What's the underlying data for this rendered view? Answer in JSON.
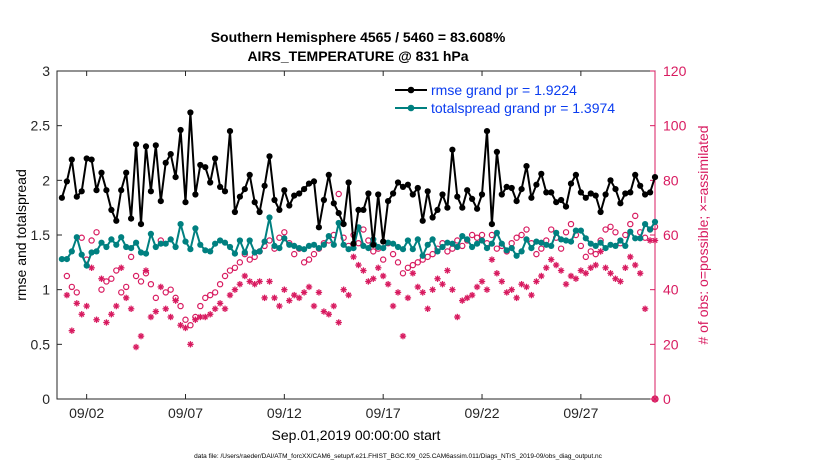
{
  "chart_data": {
    "type": "line",
    "title": "Southern Hemisphere 4565 / 5460 = 83.608%",
    "subtitle": "AIRS_TEMPERATURE @ 831 hPa",
    "xlabel": "Sep.01,2019 00:00:00 start",
    "ylabel_left": "rmse and totalspread",
    "ylabel_right": "# of obs: o=possible; ×=assimilated",
    "footnote": "data file: /Users/raeder/DAI/ATM_forcXX/CAM6_setup/f.e21.FHIST_BGC.f09_025.CAM6assim.011/Diags_NTrS_2019-09/obs_diag_output.nc",
    "xlim": [
      0.5,
      30.75
    ],
    "x_ticks": [
      2,
      7,
      12,
      17,
      22,
      27
    ],
    "x_tick_labels": [
      "09/02",
      "09/07",
      "09/12",
      "09/17",
      "09/22",
      "09/27"
    ],
    "ylim_left": [
      0,
      3
    ],
    "y_ticks_left": [
      "0",
      "0.5",
      "1",
      "1.5",
      "2",
      "2.5",
      "3"
    ],
    "ylim_right": [
      0,
      120
    ],
    "y_ticks_right": [
      "0",
      "20",
      "40",
      "60",
      "80",
      "100",
      "120"
    ],
    "colors": {
      "rmse": "#000000",
      "spread": "#008080",
      "obs": "#d81b60",
      "legend_text": "#0a3cf0"
    },
    "x_step": 0.25,
    "x_start": 0.75,
    "series": [
      {
        "name": "rmse grand pr = 1.9224",
        "axis": "left",
        "values": [
          1.84,
          1.99,
          2.19,
          1.85,
          1.9,
          2.2,
          2.19,
          1.91,
          2.07,
          1.91,
          1.73,
          1.63,
          1.91,
          2.07,
          1.65,
          2.33,
          1.6,
          2.31,
          1.9,
          2.32,
          1.81,
          2.16,
          2.24,
          2.03,
          2.46,
          1.8,
          2.62,
          1.87,
          2.14,
          2.12,
          1.98,
          2.2,
          1.94,
          1.9,
          2.45,
          1.71,
          1.85,
          1.92,
          2.05,
          1.8,
          1.71,
          1.95,
          2.22,
          1.82,
          1.73,
          1.91,
          1.77,
          1.86,
          1.88,
          1.92,
          1.97,
          1.99,
          1.57,
          1.82,
          2.05,
          1.79,
          1.7,
          1.6,
          1.98,
          1.42,
          1.73,
          1.73,
          1.88,
          1.41,
          1.87,
          1.44,
          1.81,
          1.88,
          1.98,
          1.94,
          1.96,
          1.87,
          1.93,
          1.63,
          1.9,
          1.66,
          1.73,
          1.87,
          1.75,
          2.28,
          1.85,
          1.75,
          1.91,
          1.83,
          1.74,
          1.87,
          2.45,
          1.6,
          2.26,
          1.87,
          1.94,
          1.93,
          1.81,
          1.92,
          2.13,
          1.84,
          1.96,
          2.06,
          1.89,
          1.89,
          1.8,
          1.82,
          1.76,
          1.97,
          2.05,
          1.89,
          1.84,
          1.88,
          1.86,
          1.71,
          1.87,
          2.0,
          1.92,
          1.79,
          1.88,
          1.89,
          2.05,
          1.95,
          1.87,
          1.89,
          2.03
        ]
      },
      {
        "name": "totalspread grand pr = 1.3974",
        "axis": "left",
        "values": [
          1.28,
          1.28,
          1.35,
          1.48,
          1.32,
          1.22,
          1.34,
          1.35,
          1.43,
          1.39,
          1.46,
          1.41,
          1.48,
          1.39,
          1.38,
          1.43,
          1.34,
          1.33,
          1.51,
          1.39,
          1.42,
          1.42,
          1.46,
          1.39,
          1.6,
          1.44,
          1.37,
          1.56,
          1.41,
          1.36,
          1.35,
          1.42,
          1.45,
          1.43,
          1.39,
          1.33,
          1.45,
          1.34,
          1.45,
          1.34,
          1.35,
          1.44,
          1.66,
          1.4,
          1.38,
          1.47,
          1.41,
          1.4,
          1.38,
          1.37,
          1.4,
          1.41,
          1.38,
          1.41,
          1.49,
          1.41,
          1.61,
          1.41,
          1.37,
          1.38,
          1.57,
          1.4,
          1.38,
          1.46,
          1.39,
          1.38,
          1.43,
          1.42,
          1.39,
          1.37,
          1.45,
          1.37,
          1.46,
          1.31,
          1.41,
          1.46,
          1.35,
          1.39,
          1.43,
          1.42,
          1.39,
          1.49,
          1.46,
          1.39,
          1.42,
          1.45,
          1.38,
          1.42,
          1.52,
          1.42,
          1.36,
          1.38,
          1.31,
          1.35,
          1.46,
          1.38,
          1.44,
          1.43,
          1.41,
          1.4,
          1.52,
          1.46,
          1.45,
          1.44,
          1.54,
          1.54,
          1.47,
          1.42,
          1.4,
          1.43,
          1.38,
          1.41,
          1.4,
          1.45,
          1.4,
          1.53,
          1.47,
          1.47,
          1.6,
          1.55,
          1.62
        ]
      }
    ],
    "obs_possible": [
      [
        1.0,
        45
      ],
      [
        1.25,
        41
      ],
      [
        1.5,
        39
      ],
      [
        1.75,
        59
      ],
      [
        2.0,
        51
      ],
      [
        2.25,
        58
      ],
      [
        2.5,
        61
      ],
      [
        2.75,
        40
      ],
      [
        3.0,
        43
      ],
      [
        3.25,
        44
      ],
      [
        3.5,
        47
      ],
      [
        3.75,
        39
      ],
      [
        4.0,
        41
      ],
      [
        4.25,
        52
      ],
      [
        4.5,
        45
      ],
      [
        4.75,
        43
      ],
      [
        5.0,
        46
      ],
      [
        5.25,
        42
      ],
      [
        5.5,
        37
      ],
      [
        5.75,
        58
      ],
      [
        6.0,
        39
      ],
      [
        6.25,
        40
      ],
      [
        6.5,
        37
      ],
      [
        6.75,
        34
      ],
      [
        7.0,
        29
      ],
      [
        7.25,
        27
      ],
      [
        7.5,
        30
      ],
      [
        7.75,
        34
      ],
      [
        8.0,
        37
      ],
      [
        8.25,
        38
      ],
      [
        8.5,
        39
      ],
      [
        8.75,
        42
      ],
      [
        9.0,
        45
      ],
      [
        9.25,
        47
      ],
      [
        9.5,
        48
      ],
      [
        9.75,
        50
      ],
      [
        10.0,
        53
      ],
      [
        10.25,
        51
      ],
      [
        10.5,
        52
      ],
      [
        10.75,
        54
      ],
      [
        11.0,
        56
      ],
      [
        11.25,
        58
      ],
      [
        11.5,
        55
      ],
      [
        11.75,
        59
      ],
      [
        12.0,
        61
      ],
      [
        12.25,
        57
      ],
      [
        12.5,
        53
      ],
      [
        12.75,
        55
      ],
      [
        13.0,
        50
      ],
      [
        13.25,
        51
      ],
      [
        13.5,
        53
      ],
      [
        13.75,
        55
      ],
      [
        14.0,
        57
      ],
      [
        14.25,
        58
      ],
      [
        14.5,
        60
      ],
      [
        14.75,
        75
      ],
      [
        15.0,
        59
      ],
      [
        15.25,
        56
      ],
      [
        15.5,
        60
      ],
      [
        15.75,
        57
      ],
      [
        16.0,
        62
      ],
      [
        16.25,
        58
      ],
      [
        16.5,
        54
      ],
      [
        16.75,
        55
      ],
      [
        17.0,
        51
      ],
      [
        17.25,
        57
      ],
      [
        17.5,
        53
      ],
      [
        17.75,
        50
      ],
      [
        18.0,
        46
      ],
      [
        18.25,
        48
      ],
      [
        18.5,
        49
      ],
      [
        18.75,
        50
      ],
      [
        19.0,
        51
      ],
      [
        19.25,
        52
      ],
      [
        19.5,
        53
      ],
      [
        19.75,
        55
      ],
      [
        20.0,
        57
      ],
      [
        20.25,
        54
      ],
      [
        20.5,
        55
      ],
      [
        20.75,
        58
      ],
      [
        21.0,
        56
      ],
      [
        21.25,
        58
      ],
      [
        21.5,
        60
      ],
      [
        21.75,
        59
      ],
      [
        22.0,
        60
      ],
      [
        22.25,
        57
      ],
      [
        22.5,
        60
      ],
      [
        22.75,
        55
      ],
      [
        23.0,
        56
      ],
      [
        23.25,
        54
      ],
      [
        23.5,
        57
      ],
      [
        23.75,
        59
      ],
      [
        24.0,
        60
      ],
      [
        24.25,
        62
      ],
      [
        24.5,
        57
      ],
      [
        24.75,
        53
      ],
      [
        25.0,
        55
      ],
      [
        25.25,
        58
      ],
      [
        25.5,
        62
      ],
      [
        25.75,
        59
      ],
      [
        26.0,
        55
      ],
      [
        26.25,
        61
      ],
      [
        26.5,
        64
      ],
      [
        26.75,
        60
      ],
      [
        27.0,
        56
      ],
      [
        27.25,
        52
      ],
      [
        27.5,
        54
      ],
      [
        27.75,
        53
      ],
      [
        28.0,
        58
      ],
      [
        28.25,
        62
      ],
      [
        28.5,
        63
      ],
      [
        28.75,
        61
      ],
      [
        29.0,
        57
      ],
      [
        29.25,
        60
      ],
      [
        29.5,
        64
      ],
      [
        29.75,
        67
      ],
      [
        30.0,
        61
      ],
      [
        30.25,
        59
      ],
      [
        30.5,
        62
      ],
      [
        30.75,
        63
      ]
    ],
    "obs_assimilated": [
      [
        1.0,
        38
      ],
      [
        1.25,
        25
      ],
      [
        1.5,
        35
      ],
      [
        1.75,
        31
      ],
      [
        2.0,
        34
      ],
      [
        2.25,
        48
      ],
      [
        2.5,
        29
      ],
      [
        2.75,
        44
      ],
      [
        3.0,
        28
      ],
      [
        3.25,
        31
      ],
      [
        3.5,
        34
      ],
      [
        3.75,
        48
      ],
      [
        4.0,
        37
      ],
      [
        4.25,
        33
      ],
      [
        4.5,
        19
      ],
      [
        4.75,
        23
      ],
      [
        5.0,
        47
      ],
      [
        5.25,
        30
      ],
      [
        5.5,
        32
      ],
      [
        5.75,
        41
      ],
      [
        6.0,
        33
      ],
      [
        6.25,
        30
      ],
      [
        6.5,
        36
      ],
      [
        6.75,
        27
      ],
      [
        7.0,
        26
      ],
      [
        7.25,
        20
      ],
      [
        7.5,
        29
      ],
      [
        7.75,
        30
      ],
      [
        8.0,
        30
      ],
      [
        8.25,
        31
      ],
      [
        8.5,
        33
      ],
      [
        8.75,
        35
      ],
      [
        9.0,
        33
      ],
      [
        9.25,
        38
      ],
      [
        9.5,
        40
      ],
      [
        9.75,
        42
      ],
      [
        10.0,
        45
      ],
      [
        10.25,
        43
      ],
      [
        10.5,
        42
      ],
      [
        10.75,
        43
      ],
      [
        11.0,
        37
      ],
      [
        11.25,
        43
      ],
      [
        11.5,
        37
      ],
      [
        11.75,
        34
      ],
      [
        12.0,
        40
      ],
      [
        12.25,
        36
      ],
      [
        12.5,
        38
      ],
      [
        12.75,
        37
      ],
      [
        13.0,
        39
      ],
      [
        13.25,
        41
      ],
      [
        13.5,
        34
      ],
      [
        13.75,
        39
      ],
      [
        14.0,
        32
      ],
      [
        14.25,
        31
      ],
      [
        14.5,
        34
      ],
      [
        14.75,
        28
      ],
      [
        15.0,
        40
      ],
      [
        15.25,
        38
      ],
      [
        15.5,
        52
      ],
      [
        15.75,
        49
      ],
      [
        16.0,
        47
      ],
      [
        16.25,
        43
      ],
      [
        16.5,
        44
      ],
      [
        16.75,
        48
      ],
      [
        17.0,
        45
      ],
      [
        17.25,
        42
      ],
      [
        17.5,
        34
      ],
      [
        17.75,
        39
      ],
      [
        18.0,
        23
      ],
      [
        18.25,
        37
      ],
      [
        18.5,
        46
      ],
      [
        18.75,
        41
      ],
      [
        19.0,
        39
      ],
      [
        19.25,
        33
      ],
      [
        19.5,
        40
      ],
      [
        19.75,
        44
      ],
      [
        20.0,
        42
      ],
      [
        20.25,
        47
      ],
      [
        20.5,
        40
      ],
      [
        20.75,
        30
      ],
      [
        21.0,
        36
      ],
      [
        21.25,
        37
      ],
      [
        21.5,
        38
      ],
      [
        21.75,
        41
      ],
      [
        22.0,
        43
      ],
      [
        22.25,
        40
      ],
      [
        22.5,
        51
      ],
      [
        22.75,
        46
      ],
      [
        23.0,
        43
      ],
      [
        23.25,
        39
      ],
      [
        23.5,
        40
      ],
      [
        23.75,
        37
      ],
      [
        24.0,
        42
      ],
      [
        24.25,
        41
      ],
      [
        24.5,
        38
      ],
      [
        24.75,
        43
      ],
      [
        25.0,
        45
      ],
      [
        25.25,
        48
      ],
      [
        25.5,
        51
      ],
      [
        25.75,
        49
      ],
      [
        26.0,
        47
      ],
      [
        26.25,
        42
      ],
      [
        26.5,
        45
      ],
      [
        26.75,
        44
      ],
      [
        27.0,
        47
      ],
      [
        27.25,
        46
      ],
      [
        27.5,
        48
      ],
      [
        27.75,
        49
      ],
      [
        28.0,
        54
      ],
      [
        28.25,
        48
      ],
      [
        28.5,
        46
      ],
      [
        28.75,
        44
      ],
      [
        29.0,
        43
      ],
      [
        29.25,
        48
      ],
      [
        29.5,
        52
      ],
      [
        29.75,
        49
      ],
      [
        30.0,
        46
      ],
      [
        30.25,
        33
      ],
      [
        30.5,
        58
      ],
      [
        30.75,
        58
      ]
    ],
    "obs_x_only_marker": [
      31.0,
      0
    ]
  }
}
